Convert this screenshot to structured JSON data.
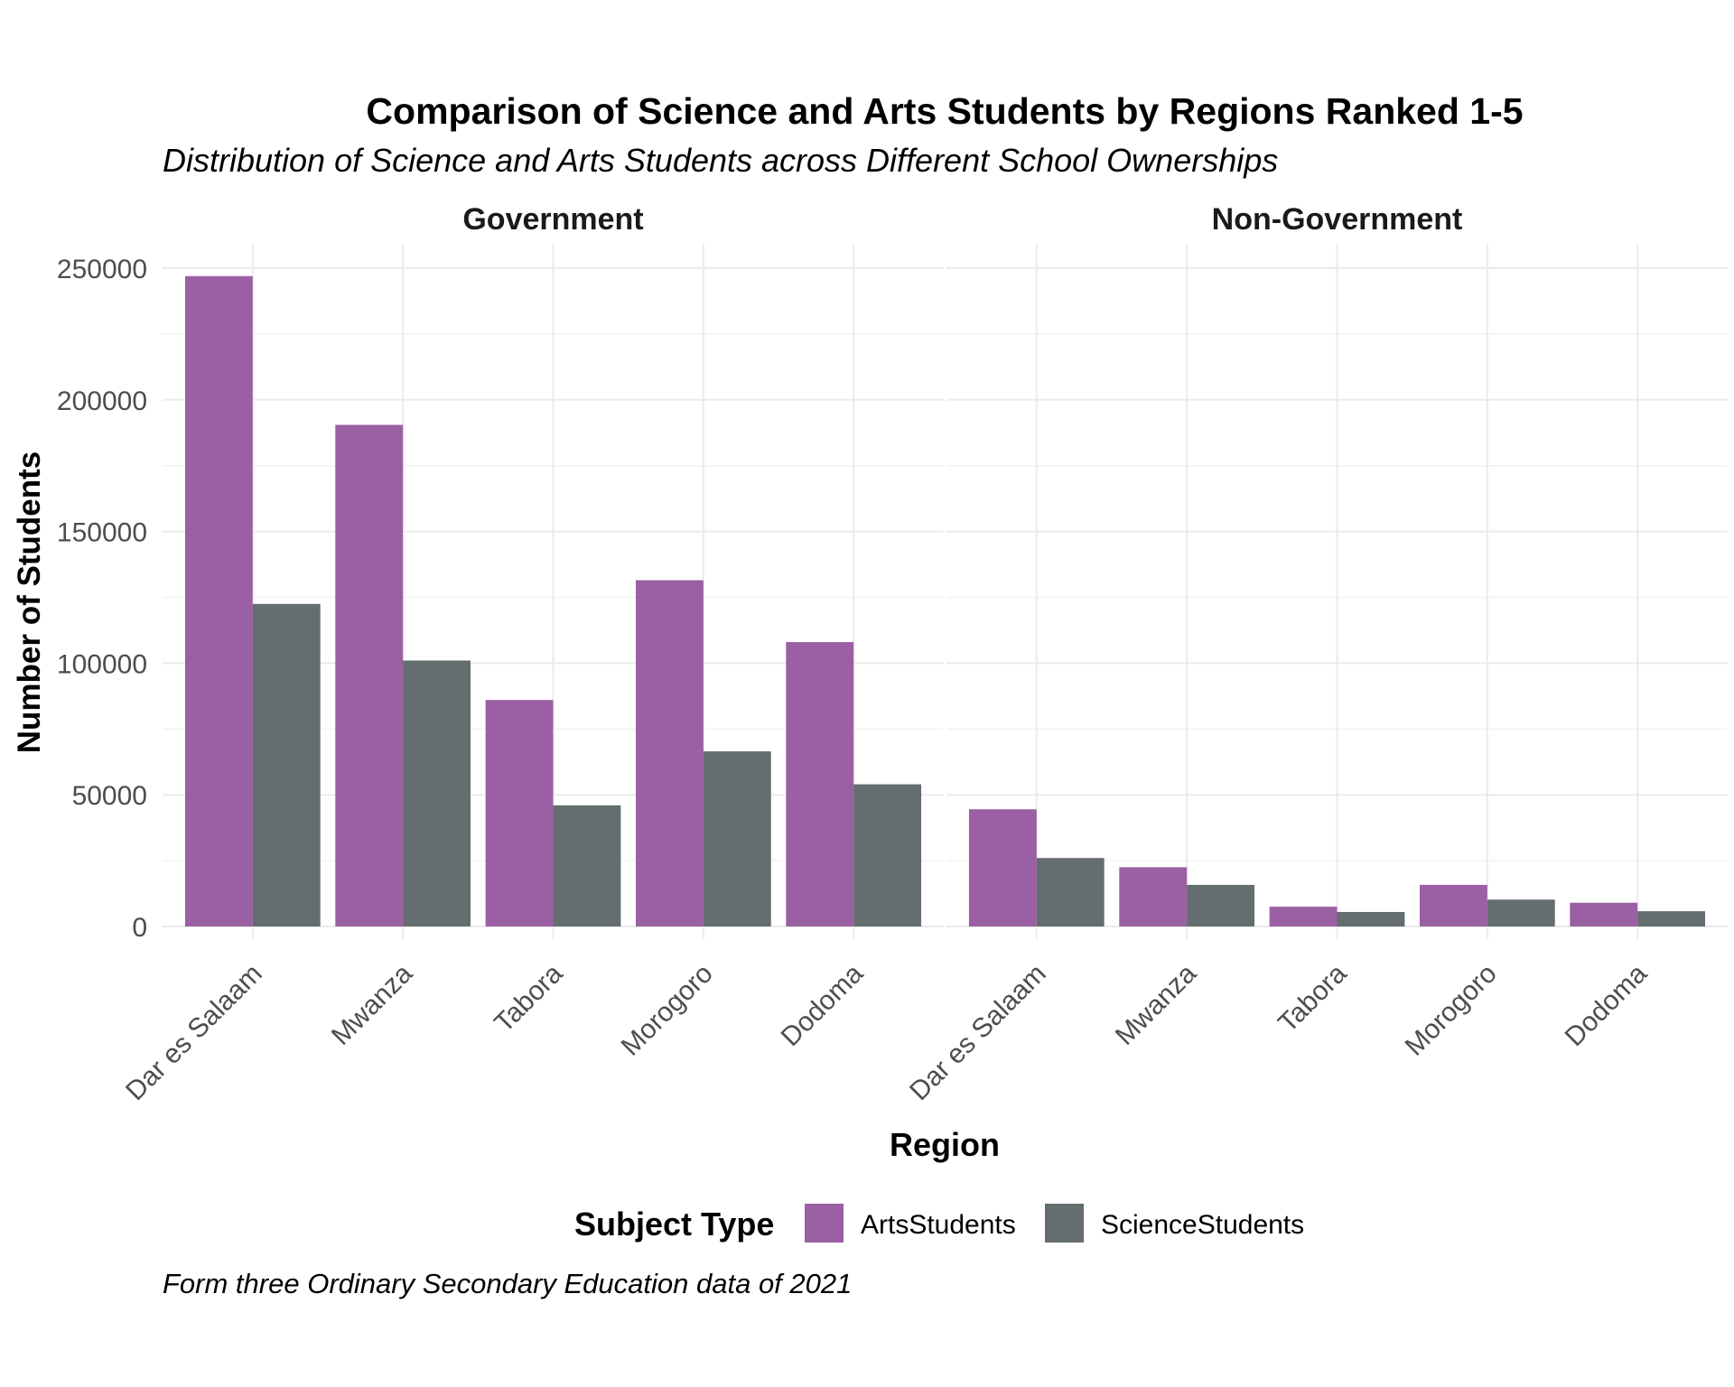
{
  "chart_data": {
    "type": "bar",
    "title": "Comparison of Science and Arts Students by Regions Ranked 1-5",
    "subtitle": "Distribution of Science and Arts Students across Different School Ownerships",
    "caption": "Form three Ordinary Secondary Education data of 2021",
    "xlabel": "Region",
    "ylabel": "Number of Students",
    "ylim": [
      0,
      260000
    ],
    "y_ticks": [
      0,
      50000,
      100000,
      150000,
      200000,
      250000
    ],
    "y_tick_labels": [
      "0",
      "50000",
      "100000",
      "150000",
      "200000",
      "250000"
    ],
    "categories": [
      "Dar es Salaam",
      "Mwanza",
      "Tabora",
      "Morogoro",
      "Dodoma"
    ],
    "grid": true,
    "legend": {
      "title": "Subject Type",
      "placement": "bottom",
      "entries": [
        {
          "name": "ArtsStudents",
          "color": "#9b5fa3"
        },
        {
          "name": "ScienceStudents",
          "color": "#646d6f"
        }
      ]
    },
    "facets": [
      {
        "label": "Government",
        "series": [
          {
            "name": "ArtsStudents",
            "color": "#9b5fa3",
            "values": [
              247000,
              190500,
              86000,
              131500,
              108000
            ]
          },
          {
            "name": "ScienceStudents",
            "color": "#646d6f",
            "values": [
              122500,
              101000,
              46000,
              66500,
              54000
            ]
          }
        ]
      },
      {
        "label": "Non-Government",
        "series": [
          {
            "name": "ArtsStudents",
            "color": "#9b5fa3",
            "values": [
              44500,
              22500,
              7500,
              15800,
              9000
            ]
          },
          {
            "name": "ScienceStudents",
            "color": "#646d6f",
            "values": [
              26000,
              15800,
              5500,
              10200,
              5800
            ]
          }
        ]
      }
    ]
  }
}
